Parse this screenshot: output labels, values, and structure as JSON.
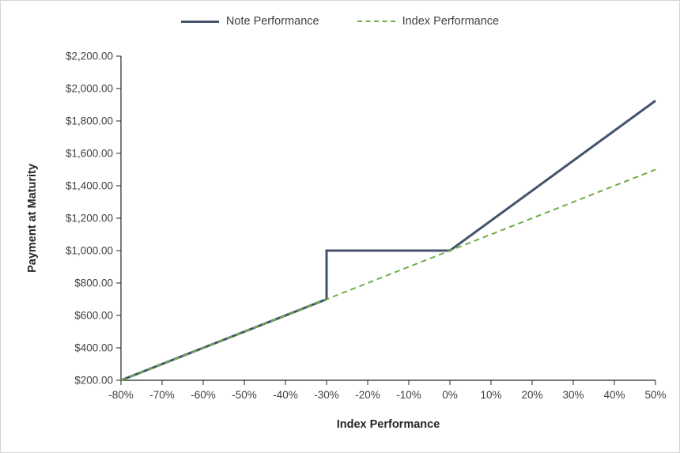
{
  "legend": {
    "items": [
      {
        "label": "Note Performance",
        "color": "#44546A",
        "style": "solid"
      },
      {
        "label": "Index Performance",
        "color": "#70AD47",
        "style": "dashed"
      }
    ]
  },
  "axes": {
    "y_title": "Payment at Maturity",
    "x_title": "Index Performance"
  },
  "colors": {
    "axis_line": "#262626",
    "tick_label": "#404040",
    "background": "#ffffff"
  },
  "chart_data": {
    "type": "line",
    "title": "",
    "xlabel": "Index Performance",
    "ylabel": "Payment at Maturity",
    "xlim": [
      -0.8,
      0.5
    ],
    "ylim": [
      200,
      2200
    ],
    "grid": false,
    "legend_position": "top",
    "x_ticks": [
      -0.8,
      -0.7,
      -0.6,
      -0.5,
      -0.4,
      -0.3,
      -0.2,
      -0.1,
      0,
      0.1,
      0.2,
      0.3,
      0.4,
      0.5
    ],
    "x_tick_labels": [
      "-80%",
      "-70%",
      "-60%",
      "-50%",
      "-40%",
      "-30%",
      "-20%",
      "-10%",
      "0%",
      "10%",
      "20%",
      "30%",
      "40%",
      "50%"
    ],
    "y_ticks": [
      200,
      400,
      600,
      800,
      1000,
      1200,
      1400,
      1600,
      1800,
      2000,
      2200
    ],
    "y_tick_labels": [
      "$200.00",
      "$400.00",
      "$600.00",
      "$800.00",
      "$1,000.00",
      "$1,200.00",
      "$1,400.00",
      "$1,600.00",
      "$1,800.00",
      "$2,000.00",
      "$2,200.00"
    ],
    "series": [
      {
        "name": "Note Performance",
        "color": "#44546A",
        "width": 3,
        "dash": null,
        "points": [
          [
            -0.8,
            200
          ],
          [
            -0.3,
            700
          ],
          [
            -0.3,
            1000
          ],
          [
            0,
            1000
          ],
          [
            0.5,
            1925
          ]
        ]
      },
      {
        "name": "Index Performance",
        "color": "#70AD47",
        "width": 2,
        "dash": [
          7,
          5
        ],
        "points": [
          [
            -0.8,
            200
          ],
          [
            0.5,
            1500
          ]
        ]
      }
    ]
  }
}
